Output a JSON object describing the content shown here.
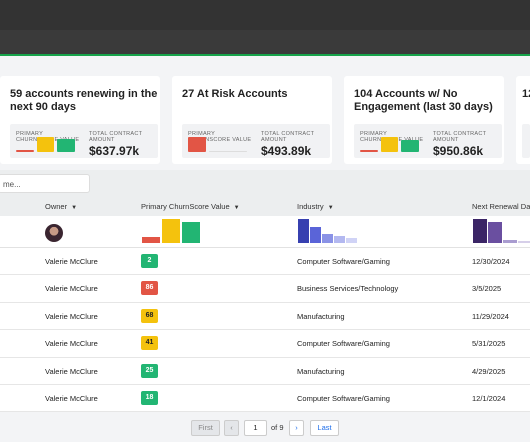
{
  "cards": [
    {
      "title": "59 accounts renewing in the next 90 days",
      "metric_label": "PRIMARY CHURNSCORE VALUE",
      "amount_label": "TOTAL CONTRACT AMOUNT",
      "amount": "$637.97k",
      "bar_colors": [
        "#e25545",
        "#f4c20d",
        "#22b573"
      ]
    },
    {
      "title": "27 At Risk Accounts",
      "metric_label": "PRIMARY CHURNSCORE VALUE",
      "amount_label": "TOTAL CONTRACT AMOUNT",
      "amount": "$493.89k",
      "bar_colors": [
        "#e25545"
      ]
    },
    {
      "title": "104 Accounts w/ No Engagement (last 30 days)",
      "metric_label": "PRIMARY CHURNSCORE VALUE",
      "amount_label": "TOTAL CONTRACT AMOUNT",
      "amount": "$950.86k",
      "bar_colors": [
        "#e25545",
        "#f4c20d",
        "#22b573"
      ]
    },
    {
      "title": "12"
    }
  ],
  "search": {
    "placeholder": "me..."
  },
  "table": {
    "headers": {
      "owner": "Owner",
      "score": "Primary ChurnScore Value",
      "industry": "Industry",
      "renewal": "Next Renewal Date"
    },
    "rows": [
      {
        "owner": "Valerie McClure",
        "score": "2",
        "score_color": "#22b573",
        "industry": "Computer Software/Gaming",
        "renewal": "12/30/2024"
      },
      {
        "owner": "Valerie McClure",
        "score": "86",
        "score_color": "#e25545",
        "industry": "Business Services/Technology",
        "renewal": "3/5/2025"
      },
      {
        "owner": "Valerie McClure",
        "score": "68",
        "score_color": "#f4c20d",
        "industry": "Manufacturing",
        "renewal": "11/29/2024"
      },
      {
        "owner": "Valerie McClure",
        "score": "41",
        "score_color": "#f4c20d",
        "industry": "Computer Software/Gaming",
        "renewal": "5/31/2025"
      },
      {
        "owner": "Valerie McClure",
        "score": "25",
        "score_color": "#22b573",
        "industry": "Manufacturing",
        "renewal": "4/29/2025"
      },
      {
        "owner": "Valerie McClure",
        "score": "18",
        "score_color": "#22b573",
        "industry": "Computer Software/Gaming",
        "renewal": "12/1/2024"
      }
    ]
  },
  "pager": {
    "first": "First",
    "prev": "‹",
    "page": "1",
    "of": "of 9",
    "next": "›",
    "last": "Last"
  }
}
